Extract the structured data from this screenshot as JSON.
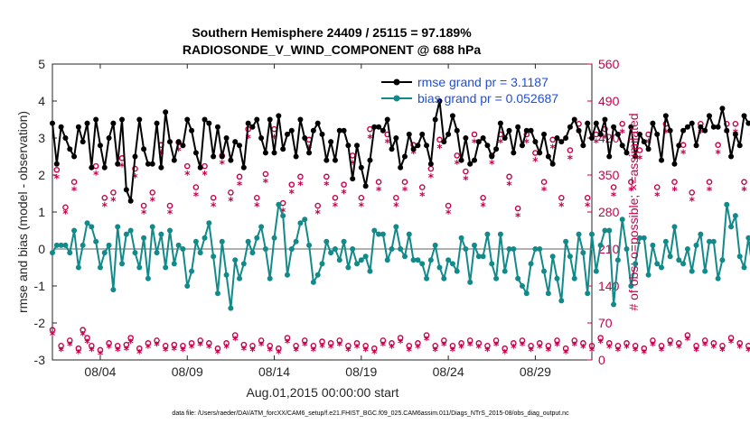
{
  "chart_data": {
    "type": "line",
    "title": "Southern Hemisphere 24409 / 25115 = 97.189%",
    "subtitle": "RADIOSONDE_V_WIND_COMPONENT @ 688 hPa",
    "xlabel": "Aug.01,2015 00:00:00 start",
    "ylabel": "rmse and bias (model - observation)",
    "ylabel_right": "# of obs: o=possible; ×=assimilated",
    "footer": "data file: /Users/raeder/DAI/ATM_forcXX/CAM6_setup/f.e21.FHIST_BGC.f09_025.CAM6assim.011/Diags_NTrS_2015-08/obs_diag_output.nc",
    "ylim": [
      -3,
      5
    ],
    "ylim_right": [
      0,
      560
    ],
    "xlim": [
      1.25,
      32.25
    ],
    "yticks": [
      "-3",
      "-2",
      "-1",
      "0",
      "1",
      "2",
      "3",
      "4",
      "5"
    ],
    "yticks_right": [
      "0",
      "70",
      "140",
      "210",
      "280",
      "350",
      "420",
      "490",
      "560"
    ],
    "xticks": [
      {
        "label": "08/04",
        "x": 4.0
      },
      {
        "label": "08/09",
        "x": 9.0
      },
      {
        "label": "08/14",
        "x": 14.0
      },
      {
        "label": "08/19",
        "x": 19.0
      },
      {
        "label": "08/24",
        "x": 24.0
      },
      {
        "label": "08/29",
        "x": 29.0
      }
    ],
    "legend": [
      "rmse grand pr = 3.1187",
      "bias grand pr = 0.052687"
    ],
    "zero_line": 0,
    "x_start": 1.25,
    "x_step": 0.25,
    "series": [
      {
        "name": "rmse",
        "color": "#000000",
        "values": [
          3.4,
          2.3,
          3.3,
          3.0,
          2.7,
          2.5,
          3.3,
          2.9,
          3.4,
          2.2,
          3.5,
          2.8,
          2.2,
          3.0,
          3.4,
          2.3,
          3.5,
          1.6,
          1.3,
          2.5,
          3.5,
          2.7,
          2.3,
          2.3,
          3.4,
          2.2,
          3.7,
          2.9,
          2.4,
          2.9,
          2.8,
          3.5,
          3.2,
          2.6,
          2.2,
          3.5,
          3.4,
          2.5,
          3.3,
          2.5,
          3.0,
          2.4,
          2.9,
          2.8,
          2.2,
          3.4,
          3.3,
          3.5,
          3.0,
          2.6,
          3.5,
          2.6,
          3.6,
          2.7,
          3.1,
          3.2,
          2.5,
          3.5,
          3.0,
          2.6,
          3.2,
          3.4,
          3.1,
          2.4,
          2.9,
          2.4,
          3.2,
          3.2,
          2.8,
          1.9,
          2.8,
          2.2,
          1.7,
          2.4,
          3.3,
          3.3,
          3.2,
          3.5,
          2.7,
          3.0,
          2.2,
          2.5,
          3.1,
          2.7,
          2.8,
          3.1,
          2.8,
          2.3,
          3.5,
          4.0,
          2.9,
          3.1,
          3.6,
          3.2,
          2.4,
          3.0,
          2.3,
          2.4,
          2.9,
          3.0,
          2.8,
          2.5,
          2.7,
          3.4,
          3.0,
          3.2,
          2.6,
          3.3,
          2.8,
          3.2,
          3.2,
          2.9,
          2.6,
          3.1,
          2.5,
          2.3,
          3.0,
          2.9,
          3.0,
          3.3,
          3.5,
          3.2,
          2.8,
          3.4,
          3.0,
          3.4,
          3.1,
          3.5,
          2.5,
          3.3,
          3.1,
          2.8,
          2.6,
          3.3,
          2.5,
          3.1,
          2.9,
          2.7,
          3.4,
          3.1,
          2.4,
          3.6,
          3.2,
          2.3,
          2.8,
          3.2,
          3.3,
          3.4,
          2.8,
          3.3,
          3.2,
          3.6,
          3.3,
          3.3,
          3.8,
          3.2,
          2.5,
          3.1,
          2.8,
          3.6,
          3.4,
          3.4,
          3.3,
          3.4,
          3.6,
          4.0,
          3.4,
          3.1,
          3.5,
          3.4,
          3.4,
          3.2,
          3.0,
          3.1,
          3.6,
          3.5,
          3.4,
          3.6,
          3.4,
          2.9,
          3.5,
          3.0,
          2.8,
          3.0,
          2.8,
          2.5,
          3.5,
          3.4,
          3.2,
          3.0,
          2.8,
          3.2,
          3.0,
          3.0,
          3.5,
          3.4,
          2.6,
          2.8,
          3.0,
          2.4,
          2.6,
          3.3,
          2.8,
          3.0,
          3.1,
          3.5,
          3.6,
          3.3,
          3.4,
          3.2,
          3.5,
          3.4,
          3.7,
          3.4,
          3.5,
          3.3,
          3.0,
          3.6,
          3.2,
          3.4,
          2.7,
          2.9,
          3.1,
          3.4,
          3.5,
          3.2,
          2.5,
          3.0,
          2.9,
          2.6,
          3.2,
          3.4,
          3.0,
          2.9,
          3.2,
          3.0,
          3.0,
          2.8,
          3.4,
          3.2,
          3.0,
          3.2,
          3.0,
          3.0,
          3.4,
          3.3,
          2.4,
          3.1,
          3.0,
          3.0,
          2.5,
          2.6,
          3.0,
          3.2,
          2.8,
          3.1,
          2.5,
          3.1,
          2.9,
          2.6,
          3.2,
          3.1,
          2.8,
          2.6,
          3.6,
          3.0,
          2.2,
          2.0,
          2.5,
          3.4,
          3.5
        ]
      },
      {
        "name": "bias",
        "color": "#138a8a",
        "values": [
          -0.1,
          0.1,
          0.1,
          0.1,
          -0.1,
          0.5,
          -0.5,
          0.1,
          0.7,
          0.6,
          0.2,
          -0.5,
          -0.1,
          0.1,
          -1.1,
          0.6,
          -0.4,
          0.4,
          0.5,
          -0.1,
          -0.5,
          0.3,
          -0.8,
          0.6,
          -0.1,
          0.4,
          -0.5,
          0.5,
          -0.4,
          0.1,
          0.0,
          -1.0,
          -0.6,
          0.2,
          -0.1,
          0.3,
          0.7,
          -0.2,
          -1.2,
          0.2,
          -0.7,
          -1.6,
          -0.3,
          -0.8,
          -0.4,
          0.2,
          -0.1,
          0.3,
          0.6,
          0.0,
          -0.8,
          0.3,
          1.2,
          0.9,
          -0.7,
          0.0,
          0.2,
          0.7,
          0.8,
          0.1,
          -0.9,
          -0.7,
          -0.4,
          0.2,
          -0.1,
          0.0,
          -0.3,
          0.2,
          -0.5,
          0.0,
          -0.4,
          -0.3,
          -0.2,
          -0.6,
          0.5,
          0.4,
          0.4,
          -0.3,
          0.0,
          0.6,
          0.0,
          -0.2,
          0.4,
          -0.3,
          -0.3,
          -0.4,
          -0.8,
          -0.3,
          0.1,
          -0.5,
          -0.8,
          -0.3,
          -0.4,
          -0.6,
          0.3,
          0.0,
          -0.9,
          0.1,
          -0.2,
          -0.2,
          0.4,
          -0.4,
          -0.8,
          0.4,
          -0.6,
          0.0,
          0.0,
          -0.8,
          -1.0,
          -1.2,
          -0.4,
          0.0,
          0.0,
          -0.6,
          -1.2,
          -0.2,
          -0.8,
          -1.4,
          0.2,
          -0.2,
          -0.8,
          0.4,
          -0.1,
          -1.2,
          0.4,
          -0.6,
          0.1,
          0.5,
          0.5,
          -1.5,
          -0.3,
          0.8,
          0.0,
          -1.0,
          -0.4,
          0.3,
          0.3,
          -0.7,
          0.1,
          -0.4,
          -0.5,
          0.2,
          -0.2,
          0.6,
          -0.3,
          -0.4,
          0.0,
          -0.6,
          0.1,
          0.4,
          -0.6,
          0.2,
          0.2,
          -0.8,
          -0.3,
          1.2,
          0.6,
          0.9,
          -0.2,
          -0.5,
          0.3,
          -0.6,
          0.2,
          -0.5,
          -0.2,
          0.0,
          -0.3,
          -0.8,
          -0.3,
          -0.1,
          -0.8,
          0.4,
          -0.5,
          0.6,
          0.7,
          1.3,
          0.2,
          -0.1,
          0.7,
          -0.1,
          -0.3,
          0.3,
          -0.5,
          -0.4,
          -0.6,
          -0.1,
          -1.0,
          -0.3,
          -0.7,
          -0.4,
          -0.9,
          -0.6,
          -0.2,
          0.1,
          -0.8,
          -0.4,
          -0.3,
          0.3,
          -0.4,
          0.7,
          0.4,
          -0.3,
          0.0,
          0.1,
          -0.5,
          0.2,
          0.0,
          0.3,
          0.1,
          -0.3,
          0.0,
          0.0,
          -0.1,
          0.1,
          -0.2,
          -0.6,
          0.6,
          -0.3,
          0.2,
          0.0,
          -0.1,
          -0.4,
          0.1,
          0.1,
          -0.1,
          0.2,
          0.2,
          0.0,
          -0.9,
          -0.4,
          0.2,
          -0.6,
          0.2,
          -0.3,
          0.2,
          -0.4,
          -0.1,
          -0.6,
          0.1,
          -0.4,
          0.2,
          -0.2,
          0.0,
          -0.3,
          0.0,
          -0.5,
          0.0,
          -0.6,
          0.2,
          0.2,
          -0.2,
          0.2,
          0.0,
          -0.2,
          0.0,
          0.1,
          0.6,
          -0.1,
          -0.1,
          0.1,
          -0.4,
          0.3,
          0.5,
          0.3,
          -0.5,
          0.0,
          0.2,
          0.1,
          0.5,
          0.0,
          0.1,
          0.4,
          0.7,
          0.6,
          0.9,
          0.9
        ]
      }
    ],
    "obs_possible": {
      "marker": "o",
      "color": "#c8004b",
      "values": [
        50,
        353,
        20,
        282,
        30,
        330,
        15,
        50,
        35,
        20,
        360,
        12,
        300,
        25,
        310,
        20,
        375,
        22,
        35,
        355,
        15,
        285,
        25,
        310,
        30,
        400,
        20,
        285,
        22,
        405,
        20,
        360,
        25,
        320,
        30,
        360,
        25,
        300,
        15,
        380,
        25,
        310,
        40,
        340,
        22,
        430,
        20,
        300,
        30,
        345,
        20,
        430,
        15,
        290,
        35,
        325,
        20,
        340,
        30,
        410,
        20,
        285,
        28,
        340,
        25,
        300,
        30,
        325,
        20,
        380,
        25,
        300,
        20,
        430,
        15,
        330,
        30,
        420,
        25,
        300,
        35,
        330,
        20,
        400,
        25,
        320,
        40,
        355,
        20,
        410,
        30,
        285,
        20,
        380,
        25,
        350,
        30,
        420,
        25,
        300,
        20,
        380,
        30,
        420,
        15,
        340,
        25,
        280,
        30,
        420,
        20,
        385,
        25,
        330,
        20,
        410,
        30,
        300,
        15,
        390,
        30,
        440,
        25,
        300,
        20,
        420,
        35,
        430,
        25,
        320,
        20,
        440,
        25,
        330,
        20,
        390,
        15,
        420,
        30,
        320,
        20,
        440,
        30,
        330,
        25,
        400,
        40,
        310,
        20,
        440,
        30,
        330,
        25,
        400,
        20,
        440,
        35,
        440,
        25,
        330,
        20,
        420,
        30,
        450,
        20,
        300,
        25,
        440,
        30,
        455,
        22,
        330,
        20,
        430,
        25,
        330,
        40,
        450,
        20,
        330,
        25,
        420,
        15,
        440,
        30,
        330,
        25,
        440,
        20,
        330,
        30,
        415,
        25,
        330,
        20,
        440,
        30,
        360,
        25,
        445,
        20,
        330,
        35,
        440,
        20,
        330,
        25,
        420,
        40,
        440,
        20,
        460,
        25,
        330,
        20,
        420,
        30,
        430,
        25,
        330,
        20,
        450,
        25,
        330,
        30,
        440,
        20,
        380,
        25,
        330,
        20,
        440,
        25,
        330,
        30,
        420,
        15,
        440,
        20,
        370,
        25,
        420,
        30,
        340,
        20,
        420,
        25,
        310,
        20,
        430,
        28,
        360,
        25,
        410,
        30,
        320,
        20,
        420
      ]
    },
    "obs_assimilated": {
      "marker": "×",
      "color": "#c8004b",
      "values": [
        48,
        345,
        18,
        278,
        28,
        322,
        14,
        48,
        33,
        18,
        352,
        11,
        292,
        24,
        302,
        18,
        367,
        20,
        33,
        347,
        14,
        278,
        24,
        302,
        28,
        392,
        18,
        278,
        20,
        397,
        18,
        352,
        24,
        312,
        28,
        352,
        24,
        292,
        14,
        372,
        24,
        302,
        38,
        332,
        20,
        421,
        18,
        292,
        28,
        337,
        18,
        421,
        14,
        282,
        33,
        317,
        18,
        332,
        28,
        402,
        18,
        278,
        26,
        332,
        24,
        292,
        28,
        317,
        18,
        372,
        24,
        292,
        18,
        421,
        14,
        322,
        28,
        412,
        24,
        292,
        33,
        322,
        18,
        392,
        24,
        312,
        38,
        347,
        18,
        402,
        28,
        278,
        18,
        372,
        24,
        342,
        28,
        412,
        24,
        292,
        18,
        372,
        28,
        412,
        14,
        332,
        24,
        272,
        28,
        412,
        18,
        377,
        24,
        322,
        18,
        402,
        28,
        292,
        14,
        382,
        28,
        431,
        24,
        292,
        18,
        412,
        33,
        421,
        24,
        312,
        18,
        431,
        24,
        322,
        18,
        382,
        14,
        412,
        28,
        312,
        18,
        431,
        28,
        322,
        24,
        392,
        38,
        302,
        18,
        431,
        28,
        322,
        24,
        392,
        18,
        431,
        33,
        431,
        24,
        322,
        18,
        412,
        28,
        441,
        18,
        292,
        24,
        431,
        28,
        446,
        20,
        322,
        18,
        421,
        24,
        322,
        38,
        441,
        18,
        322,
        24,
        412,
        14,
        431,
        28,
        322,
        24,
        431,
        18,
        322,
        28,
        407,
        24,
        322,
        18,
        431,
        28,
        352,
        24,
        436,
        18,
        322,
        33,
        431,
        18,
        322,
        24,
        412,
        38,
        431,
        18,
        451,
        24,
        322,
        18,
        412,
        28,
        421,
        24,
        322,
        18,
        441,
        24,
        322,
        28,
        431,
        18,
        372,
        24,
        322,
        18,
        431,
        24,
        322,
        28,
        412,
        14,
        431,
        18,
        362,
        24,
        412,
        28,
        332,
        18,
        412,
        24,
        302,
        18,
        421,
        26,
        352,
        24,
        402,
        28,
        312,
        18,
        412
      ]
    }
  }
}
